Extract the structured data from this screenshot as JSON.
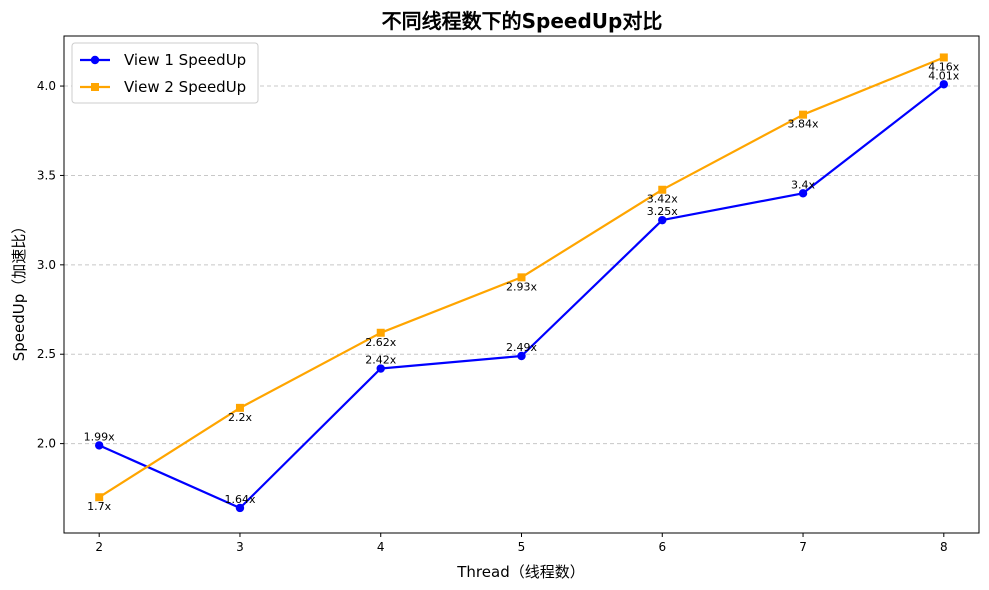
{
  "chart_data": {
    "type": "line",
    "title": "不同线程数下的SpeedUp对比",
    "xlabel": "Thread（线程数）",
    "ylabel": "SpeedUp（加速比）",
    "x": [
      2,
      3,
      4,
      5,
      6,
      7,
      8
    ],
    "x_ticks": [
      "2",
      "3",
      "4",
      "5",
      "6",
      "7",
      "8"
    ],
    "y_ticks": [
      "2.0",
      "2.5",
      "3.0",
      "3.5",
      "4.0"
    ],
    "y_tick_values": [
      2.0,
      2.5,
      3.0,
      3.5,
      4.0
    ],
    "ylim": [
      1.5,
      4.28
    ],
    "xlim": [
      1.75,
      8.25
    ],
    "grid": "y-dashed",
    "legend_position": "upper-left",
    "series": [
      {
        "name": "View 1 SpeedUp",
        "color": "#0000ff",
        "marker": "circle",
        "values": [
          1.99,
          1.64,
          2.42,
          2.49,
          3.25,
          3.4,
          4.01
        ],
        "labels": [
          "1.99x",
          "1.64x",
          "2.42x",
          "2.49x",
          "3.25x",
          "3.4x",
          "4.01x"
        ],
        "label_position": "above"
      },
      {
        "name": "View 2 SpeedUp",
        "color": "#ffa500",
        "marker": "square",
        "values": [
          1.7,
          2.2,
          2.62,
          2.93,
          3.42,
          3.84,
          4.16
        ],
        "labels": [
          "1.7x",
          "2.2x",
          "2.62x",
          "2.93x",
          "3.42x",
          "3.84x",
          "4.16x"
        ],
        "label_position": "below"
      }
    ]
  }
}
